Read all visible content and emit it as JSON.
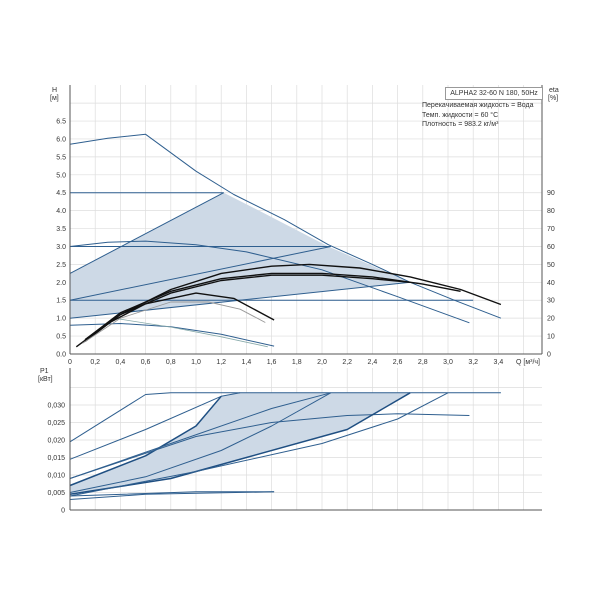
{
  "chart_data": [
    {
      "type": "line",
      "title": "ALPHA2 32-60 N 180, 50Hz",
      "info": [
        "Перекачиваемая жидкость = Вода",
        "Темп. жидкости = 60 °C",
        "Плотность = 983.2 кг/м³"
      ],
      "ylabel": "H",
      "yunit": "[м]",
      "y2label": "eta",
      "y2unit": "[%]",
      "xlabel": "Q [м³/ч]",
      "xlim": [
        0,
        3.8
      ],
      "ylim": [
        0,
        7.2
      ],
      "y2lim": [
        0,
        90
      ],
      "xticks": [
        "0",
        "0,2",
        "0,4",
        "0,6",
        "0,8",
        "1,0",
        "1,2",
        "1,4",
        "1,6",
        "1,8",
        "2,0",
        "2,2",
        "2,4",
        "2,6",
        "2,8",
        "3,0",
        "3,2",
        "3,4"
      ],
      "yticks": [
        "0.0",
        "0.5",
        "1.0",
        "1.5",
        "2.0",
        "2.5",
        "3.0",
        "3.5",
        "4.0",
        "4.5",
        "5.0",
        "5.5",
        "6.0",
        "6.5"
      ],
      "y2ticks": [
        "0",
        "10",
        "20",
        "30",
        "40",
        "50",
        "60",
        "70",
        "80",
        "90"
      ],
      "shaded_region": [
        [
          0,
          1.0
        ],
        [
          0,
          2.25
        ],
        [
          1.22,
          4.5
        ],
        [
          1.5,
          4.0
        ],
        [
          2.05,
          3.0
        ],
        [
          2.7,
          2.0
        ],
        [
          0,
          1.0
        ]
      ],
      "series": [
        {
          "name": "max-curve",
          "kind": "head",
          "points": [
            [
              0,
              5.85
            ],
            [
              0.3,
              6.02
            ],
            [
              0.6,
              6.13
            ],
            [
              1.0,
              5.1
            ],
            [
              1.3,
              4.45
            ],
            [
              1.7,
              3.75
            ],
            [
              2.05,
              3.05
            ],
            [
              2.4,
              2.5
            ],
            [
              2.7,
              2.0
            ],
            [
              3.05,
              1.5
            ],
            [
              3.42,
              1.0
            ]
          ]
        },
        {
          "name": "constant-pressure-4.5",
          "kind": "head",
          "points": [
            [
              0,
              4.5
            ],
            [
              1.22,
              4.5
            ]
          ]
        },
        {
          "name": "proportional-pressure-upper",
          "kind": "head",
          "points": [
            [
              0,
              2.25
            ],
            [
              1.22,
              4.5
            ]
          ]
        },
        {
          "name": "constant-pressure-3.0",
          "kind": "head",
          "points": [
            [
              0,
              3.0
            ],
            [
              2.07,
              3.0
            ]
          ]
        },
        {
          "name": "proportional-pressure-mid",
          "kind": "head",
          "points": [
            [
              0,
              1.5
            ],
            [
              2.07,
              3.0
            ]
          ]
        },
        {
          "name": "constant-pressure-1.5",
          "kind": "head",
          "points": [
            [
              0,
              1.5
            ],
            [
              3.2,
              1.5
            ]
          ]
        },
        {
          "name": "proportional-pressure-lower",
          "kind": "head",
          "points": [
            [
              0,
              1.0
            ],
            [
              2.7,
              2.0
            ]
          ]
        },
        {
          "name": "speed-curve-3",
          "kind": "head",
          "points": [
            [
              0,
              3.0
            ],
            [
              0.3,
              3.12
            ],
            [
              0.6,
              3.15
            ],
            [
              1.0,
              3.05
            ],
            [
              1.4,
              2.85
            ],
            [
              2.0,
              2.35
            ],
            [
              2.6,
              1.6
            ],
            [
              3.17,
              0.87
            ]
          ]
        },
        {
          "name": "speed-curve-1",
          "kind": "head",
          "points": [
            [
              0,
              0.8
            ],
            [
              0.4,
              0.85
            ],
            [
              0.8,
              0.76
            ],
            [
              1.2,
              0.55
            ],
            [
              1.62,
              0.22
            ]
          ]
        },
        {
          "name": "speed-curve-1b",
          "kind": "thin",
          "points": [
            [
              0.35,
              1.0
            ],
            [
              0.8,
              0.75
            ],
            [
              1.2,
              0.48
            ],
            [
              1.57,
              0.2
            ]
          ]
        },
        {
          "name": "efficiency-max",
          "kind": "eta",
          "points": [
            [
              0.12,
              0.35
            ],
            [
              0.4,
              1.1
            ],
            [
              0.8,
              1.8
            ],
            [
              1.2,
              2.25
            ],
            [
              1.6,
              2.45
            ],
            [
              1.9,
              2.5
            ],
            [
              2.3,
              2.4
            ],
            [
              2.7,
              2.15
            ],
            [
              3.1,
              1.8
            ],
            [
              3.42,
              1.38
            ]
          ]
        },
        {
          "name": "efficiency-2",
          "kind": "eta",
          "points": [
            [
              0.12,
              0.4
            ],
            [
              0.4,
              1.15
            ],
            [
              0.8,
              1.75
            ],
            [
              1.2,
              2.1
            ],
            [
              1.6,
              2.25
            ],
            [
              2.0,
              2.25
            ],
            [
              2.4,
              2.15
            ],
            [
              2.8,
              1.95
            ],
            [
              3.1,
              1.75
            ]
          ]
        },
        {
          "name": "efficiency-3",
          "kind": "eta",
          "points": [
            [
              0.12,
              0.4
            ],
            [
              0.4,
              1.1
            ],
            [
              0.8,
              1.7
            ],
            [
              1.2,
              2.05
            ],
            [
              1.6,
              2.2
            ],
            [
              2.0,
              2.2
            ],
            [
              2.4,
              2.1
            ],
            [
              2.7,
              2.0
            ]
          ]
        },
        {
          "name": "efficiency-4",
          "kind": "eta",
          "points": [
            [
              0.05,
              0.2
            ],
            [
              0.3,
              0.85
            ],
            [
              0.6,
              1.4
            ],
            [
              1.0,
              1.7
            ],
            [
              1.3,
              1.55
            ],
            [
              1.62,
              0.95
            ]
          ]
        },
        {
          "name": "efficiency-5",
          "kind": "etathin",
          "points": [
            [
              0.1,
              0.3
            ],
            [
              0.4,
              1.0
            ],
            [
              0.8,
              1.45
            ],
            [
              1.1,
              1.45
            ],
            [
              1.35,
              1.25
            ],
            [
              1.55,
              0.88
            ]
          ]
        }
      ]
    },
    {
      "type": "line",
      "ylabel": "P1",
      "yunit": "[кВт]",
      "xlim": [
        0,
        3.8
      ],
      "ylim": [
        0,
        0.037
      ],
      "yticks": [
        "0",
        "0,005",
        "0,010",
        "0,015",
        "0,020",
        "0,025",
        "0,030"
      ],
      "shaded_region": [
        [
          0,
          0.007
        ],
        [
          0.6,
          0.0155
        ],
        [
          1.0,
          0.024
        ],
        [
          1.2,
          0.0325
        ],
        [
          1.35,
          0.0335
        ],
        [
          2.7,
          0.0335
        ],
        [
          2.2,
          0.023
        ],
        [
          1.4,
          0.015
        ],
        [
          0.8,
          0.009
        ],
        [
          0,
          0.0045
        ]
      ],
      "series": [
        {
          "name": "power-max",
          "kind": "p",
          "points": [
            [
              0,
              0.0195
            ],
            [
              0.6,
              0.033
            ],
            [
              0.8,
              0.0335
            ],
            [
              3.42,
              0.0335
            ]
          ]
        },
        {
          "name": "power-2",
          "kind": "p",
          "points": [
            [
              0,
              0.0145
            ],
            [
              0.6,
              0.023
            ],
            [
              1.2,
              0.0325
            ],
            [
              1.35,
              0.0335
            ]
          ]
        },
        {
          "name": "power-3",
          "kind": "pthick",
          "points": [
            [
              0,
              0.007
            ],
            [
              0.6,
              0.0155
            ],
            [
              1.0,
              0.024
            ],
            [
              1.2,
              0.0325
            ]
          ]
        },
        {
          "name": "power-4",
          "kind": "p",
          "points": [
            [
              0,
              0.009
            ],
            [
              0.8,
              0.019
            ],
            [
              1.6,
              0.029
            ],
            [
              2.07,
              0.0335
            ]
          ]
        },
        {
          "name": "power-5",
          "kind": "p",
          "points": [
            [
              0,
              0.009
            ],
            [
              1.0,
              0.021
            ],
            [
              1.6,
              0.025
            ],
            [
              2.2,
              0.027
            ],
            [
              2.6,
              0.0275
            ],
            [
              3.17,
              0.027
            ]
          ]
        },
        {
          "name": "power-6",
          "kind": "p",
          "points": [
            [
              0,
              0.005
            ],
            [
              0.6,
              0.0095
            ],
            [
              1.2,
              0.017
            ],
            [
              1.6,
              0.024
            ],
            [
              2.07,
              0.0335
            ]
          ]
        },
        {
          "name": "power-7",
          "kind": "pthick",
          "points": [
            [
              0,
              0.0045
            ],
            [
              0.8,
              0.009
            ],
            [
              1.4,
              0.015
            ],
            [
              2.2,
              0.023
            ],
            [
              2.7,
              0.0335
            ]
          ]
        },
        {
          "name": "power-8",
          "kind": "p",
          "points": [
            [
              0,
              0.004
            ],
            [
              1.0,
              0.011
            ],
            [
              2.0,
              0.019
            ],
            [
              2.6,
              0.026
            ],
            [
              3.0,
              0.0335
            ]
          ]
        },
        {
          "name": "power-9",
          "kind": "p",
          "points": [
            [
              0,
              0.003
            ],
            [
              0.6,
              0.0045
            ],
            [
              1.62,
              0.0052
            ]
          ]
        },
        {
          "name": "power-10",
          "kind": "p",
          "points": [
            [
              0,
              0.004
            ],
            [
              1.0,
              0.0052
            ],
            [
              1.62,
              0.0052
            ]
          ]
        }
      ]
    }
  ]
}
